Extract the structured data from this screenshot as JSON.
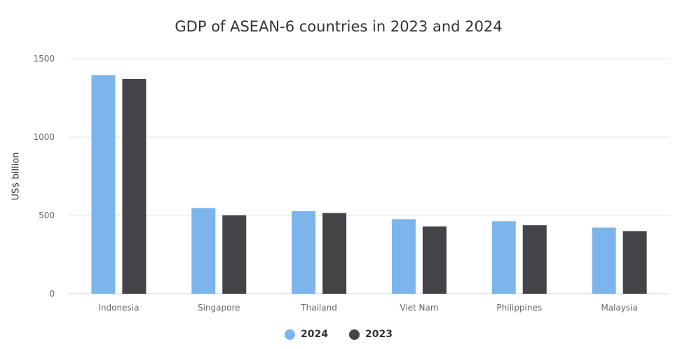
{
  "chart_data": {
    "type": "bar",
    "title": "GDP of ASEAN-6 countries in 2023 and 2024",
    "xlabel": "",
    "ylabel": "US$ billion",
    "ylim": [
      0,
      1500
    ],
    "yticks": [
      "0",
      "500",
      "1000",
      "1500"
    ],
    "categories": [
      "Indonesia",
      "Singapore",
      "Thailand",
      "Viet Nam",
      "Philippines",
      "Malaysia"
    ],
    "series": [
      {
        "name": "2024",
        "color": "#7cb5ec",
        "values": [
          1396,
          547,
          527,
          476,
          463,
          422
        ]
      },
      {
        "name": "2023",
        "color": "#434348",
        "values": [
          1371,
          501,
          515,
          430,
          437,
          400
        ]
      }
    ],
    "grid": true,
    "legend_position": "bottom-center"
  }
}
